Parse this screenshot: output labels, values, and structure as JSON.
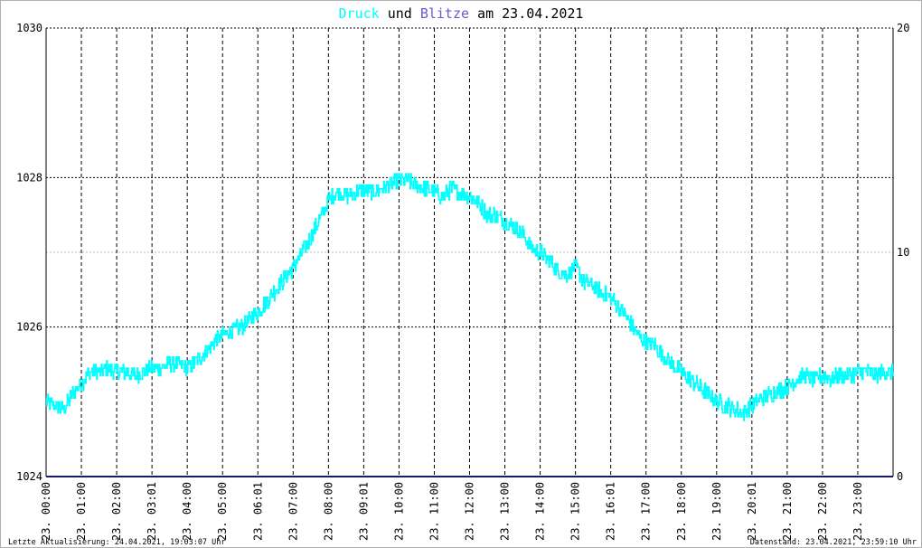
{
  "title": {
    "part1": "Druck",
    "part2": " und ",
    "part3": "Blitze",
    "part4": " am 23.04.2021",
    "color_druck": "#00ffff",
    "color_blitze": "#6a5acd",
    "color_text": "#000000"
  },
  "footer": {
    "left": "Letzte Aktualisierung: 24.04.2021, 19:03:07 Uhr",
    "right": "Datenstand: 23.04.2021, 23:59:10 Uhr"
  },
  "chart_data": {
    "type": "line",
    "title": "Druck und Blitze am 23.04.2021",
    "xlabel": "",
    "ylabel_left": "",
    "ylabel_right": "",
    "x_ticks": [
      "23. 00:00",
      "23. 01:00",
      "23. 02:00",
      "23. 03:01",
      "23. 04:00",
      "23. 05:00",
      "23. 06:01",
      "23. 07:00",
      "23. 08:00",
      "23. 09:01",
      "23. 10:00",
      "23. 11:00",
      "23. 12:00",
      "23. 13:00",
      "23. 14:00",
      "23. 15:00",
      "23. 16:01",
      "23. 17:00",
      "23. 18:00",
      "23. 19:00",
      "23. 20:01",
      "23. 21:00",
      "23. 22:00",
      "23. 23:00"
    ],
    "y_left_ticks": [
      "1024",
      "1026",
      "1028",
      "1030"
    ],
    "y_left_range": [
      1024,
      1030
    ],
    "y_right_ticks": [
      "0",
      "10",
      "20"
    ],
    "y_right_range": [
      0,
      20
    ],
    "grid": true,
    "series": [
      {
        "name": "Druck",
        "axis": "left",
        "color": "#00ffff",
        "x_hours": [
          0,
          0.25,
          0.5,
          0.75,
          1.0,
          1.25,
          1.5,
          1.75,
          2.0,
          2.25,
          2.5,
          2.75,
          3.0,
          3.25,
          3.5,
          3.75,
          4.0,
          4.25,
          4.5,
          4.75,
          5.0,
          5.25,
          5.5,
          5.75,
          6.0,
          6.25,
          6.5,
          6.75,
          7.0,
          7.25,
          7.5,
          7.75,
          8.0,
          8.25,
          8.5,
          8.75,
          9.0,
          9.25,
          9.5,
          9.75,
          10.0,
          10.25,
          10.5,
          10.75,
          11.0,
          11.25,
          11.5,
          11.75,
          12.0,
          12.25,
          12.5,
          12.75,
          13.0,
          13.25,
          13.5,
          13.75,
          14.0,
          14.25,
          14.5,
          14.75,
          15.0,
          15.25,
          15.5,
          15.75,
          16.0,
          16.25,
          16.5,
          16.75,
          17.0,
          17.25,
          17.5,
          17.75,
          18.0,
          18.25,
          18.5,
          18.75,
          19.0,
          19.25,
          19.5,
          19.75,
          20.0,
          20.25,
          20.5,
          20.75,
          21.0,
          21.25,
          21.5,
          21.75,
          22.0,
          22.25,
          22.5,
          22.75,
          23.0,
          23.25,
          23.5,
          23.75,
          24.0
        ],
        "values": [
          1025.0,
          1024.95,
          1024.9,
          1025.1,
          1025.25,
          1025.4,
          1025.4,
          1025.45,
          1025.4,
          1025.4,
          1025.35,
          1025.4,
          1025.45,
          1025.45,
          1025.5,
          1025.5,
          1025.45,
          1025.55,
          1025.65,
          1025.8,
          1025.9,
          1025.95,
          1026.0,
          1026.1,
          1026.2,
          1026.35,
          1026.5,
          1026.65,
          1026.8,
          1027.0,
          1027.2,
          1027.45,
          1027.7,
          1027.8,
          1027.75,
          1027.8,
          1027.85,
          1027.8,
          1027.85,
          1027.9,
          1027.95,
          1027.95,
          1027.9,
          1027.85,
          1027.8,
          1027.75,
          1027.85,
          1027.8,
          1027.75,
          1027.65,
          1027.5,
          1027.5,
          1027.4,
          1027.35,
          1027.25,
          1027.05,
          1027.0,
          1026.9,
          1026.75,
          1026.7,
          1026.8,
          1026.6,
          1026.55,
          1026.45,
          1026.4,
          1026.25,
          1026.1,
          1025.9,
          1025.8,
          1025.75,
          1025.6,
          1025.5,
          1025.4,
          1025.3,
          1025.2,
          1025.1,
          1025.0,
          1024.95,
          1024.9,
          1024.85,
          1024.95,
          1025.05,
          1025.1,
          1025.15,
          1025.2,
          1025.3,
          1025.35,
          1025.3,
          1025.35,
          1025.3,
          1025.35,
          1025.35,
          1025.4,
          1025.4,
          1025.35,
          1025.4,
          1025.4
        ]
      },
      {
        "name": "Blitze",
        "axis": "right",
        "color": "#191970",
        "x_hours": [
          0,
          24
        ],
        "values": [
          0,
          0
        ]
      }
    ]
  }
}
